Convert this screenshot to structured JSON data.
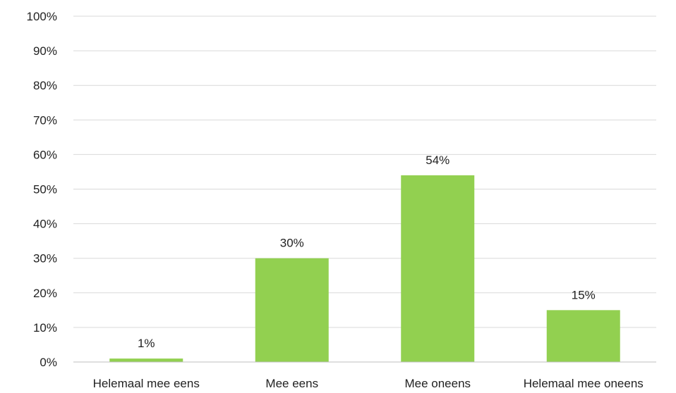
{
  "chart_data": {
    "type": "bar",
    "categories": [
      "Helemaal mee eens",
      "Mee eens",
      "Mee oneens",
      "Helemaal mee oneens"
    ],
    "values": [
      1,
      30,
      54,
      15
    ],
    "value_labels": [
      "1%",
      "30%",
      "54%",
      "15%"
    ],
    "y_ticks": [
      0,
      10,
      20,
      30,
      40,
      50,
      60,
      70,
      80,
      90,
      100
    ],
    "y_tick_labels": [
      "0%",
      "10%",
      "20%",
      "30%",
      "40%",
      "50%",
      "60%",
      "70%",
      "80%",
      "90%",
      "100%"
    ],
    "ylim": [
      0,
      100
    ],
    "grid": true,
    "legend": "none",
    "bar_color": "#92d050",
    "title": "",
    "xlabel": "",
    "ylabel": ""
  }
}
